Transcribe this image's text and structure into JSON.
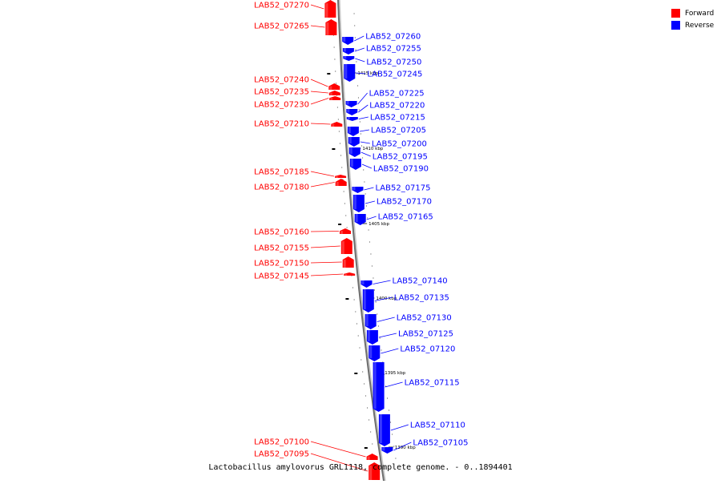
{
  "legend": {
    "forward_label": "Forward",
    "reverse_label": "Reverse",
    "forward_color": "#ff0000",
    "reverse_color": "#0000ff"
  },
  "caption": "Lactobacillus amylovorus GRL1118, complete genome. - 0..1894401",
  "scale_labels": [
    "1415 kbp",
    "1410 kbp",
    "1405 kbp",
    "1400 kbp",
    "1395 kbp",
    "1390 kbp"
  ],
  "genes": [
    {
      "label": "LAB52_07270",
      "strand": "forward"
    },
    {
      "label": "LAB52_07265",
      "strand": "forward"
    },
    {
      "label": "LAB52_07260",
      "strand": "reverse"
    },
    {
      "label": "LAB52_07255",
      "strand": "reverse"
    },
    {
      "label": "LAB52_07250",
      "strand": "reverse"
    },
    {
      "label": "LAB52_07245",
      "strand": "reverse"
    },
    {
      "label": "LAB52_07240",
      "strand": "forward"
    },
    {
      "label": "LAB52_07235",
      "strand": "forward"
    },
    {
      "label": "LAB52_07230",
      "strand": "forward"
    },
    {
      "label": "LAB52_07225",
      "strand": "reverse"
    },
    {
      "label": "LAB52_07220",
      "strand": "reverse"
    },
    {
      "label": "LAB52_07215",
      "strand": "reverse"
    },
    {
      "label": "LAB52_07210",
      "strand": "forward"
    },
    {
      "label": "LAB52_07205",
      "strand": "reverse"
    },
    {
      "label": "LAB52_07200",
      "strand": "reverse"
    },
    {
      "label": "LAB52_07195",
      "strand": "reverse"
    },
    {
      "label": "LAB52_07190",
      "strand": "reverse"
    },
    {
      "label": "LAB52_07185",
      "strand": "forward"
    },
    {
      "label": "LAB52_07180",
      "strand": "forward"
    },
    {
      "label": "LAB52_07175",
      "strand": "reverse"
    },
    {
      "label": "LAB52_07170",
      "strand": "reverse"
    },
    {
      "label": "LAB52_07165",
      "strand": "reverse"
    },
    {
      "label": "LAB52_07160",
      "strand": "forward"
    },
    {
      "label": "LAB52_07155",
      "strand": "forward"
    },
    {
      "label": "LAB52_07150",
      "strand": "forward"
    },
    {
      "label": "LAB52_07145",
      "strand": "forward"
    },
    {
      "label": "LAB52_07140",
      "strand": "reverse"
    },
    {
      "label": "LAB52_07135",
      "strand": "reverse"
    },
    {
      "label": "LAB52_07130",
      "strand": "reverse"
    },
    {
      "label": "LAB52_07125",
      "strand": "reverse"
    },
    {
      "label": "LAB52_07120",
      "strand": "reverse"
    },
    {
      "label": "LAB52_07115",
      "strand": "reverse"
    },
    {
      "label": "LAB52_07110",
      "strand": "reverse"
    },
    {
      "label": "LAB52_07105",
      "strand": "reverse"
    },
    {
      "label": "LAB52_07100",
      "strand": "forward"
    },
    {
      "label": "LAB52_07095",
      "strand": "forward"
    }
  ]
}
